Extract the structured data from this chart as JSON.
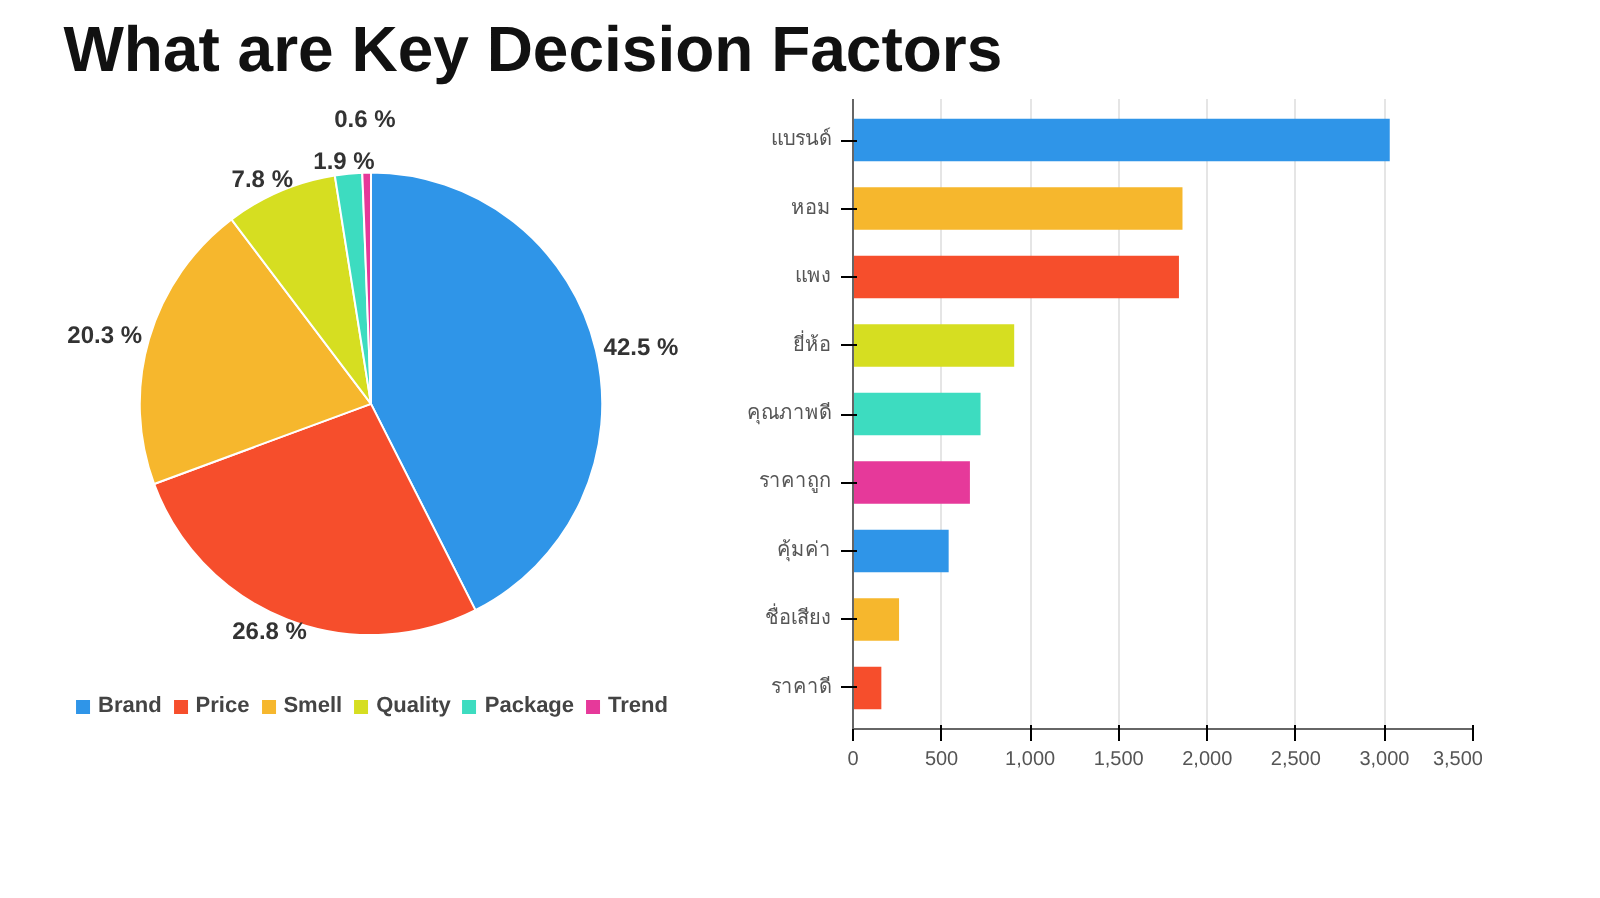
{
  "chart_data": [
    {
      "type": "pie",
      "title": "What are Key Decision Factors",
      "categories": [
        "Brand",
        "Price",
        "Smell",
        "Quality",
        "Package",
        "Trend"
      ],
      "values": [
        42.5,
        26.8,
        20.3,
        7.8,
        1.9,
        0.6
      ],
      "colors": [
        "#2f95e8",
        "#f64e2c",
        "#f6b72d",
        "#d6de21",
        "#3ddcc0",
        "#e6399a"
      ],
      "value_labels": [
        "42.5 %",
        "26.8 %",
        "20.3 %",
        "7.8 %",
        "1.9 %",
        "0.6 %"
      ],
      "legend": "bottom"
    },
    {
      "type": "bar",
      "orientation": "horizontal",
      "categories": [
        "แบรนด์",
        "หอม",
        "แพง",
        "ยี่ห้อ",
        "คุณภาพดี",
        "ราคาถูก",
        "คุ้มค่า",
        "ชื่อเสียง",
        "ราคาดี"
      ],
      "values": [
        3030,
        1860,
        1840,
        910,
        720,
        660,
        540,
        260,
        160
      ],
      "colors": [
        "#2f95e8",
        "#f6b72d",
        "#f64e2c",
        "#d6de21",
        "#3ddcc0",
        "#e6399a",
        "#2f95e8",
        "#f6b72d",
        "#f64e2c"
      ],
      "xlim": [
        0,
        3500
      ],
      "xticks": [
        0,
        500,
        {
          "value": 1000,
          "label": "1,000"
        },
        {
          "value": 1500,
          "label": "1,500"
        },
        {
          "value": 2000,
          "label": "2,000"
        },
        {
          "value": 2500,
          "label": "2,500"
        },
        {
          "value": 3000,
          "label": "3,000"
        },
        {
          "value": 3500,
          "label": "3,500"
        }
      ],
      "grid": "x"
    }
  ]
}
